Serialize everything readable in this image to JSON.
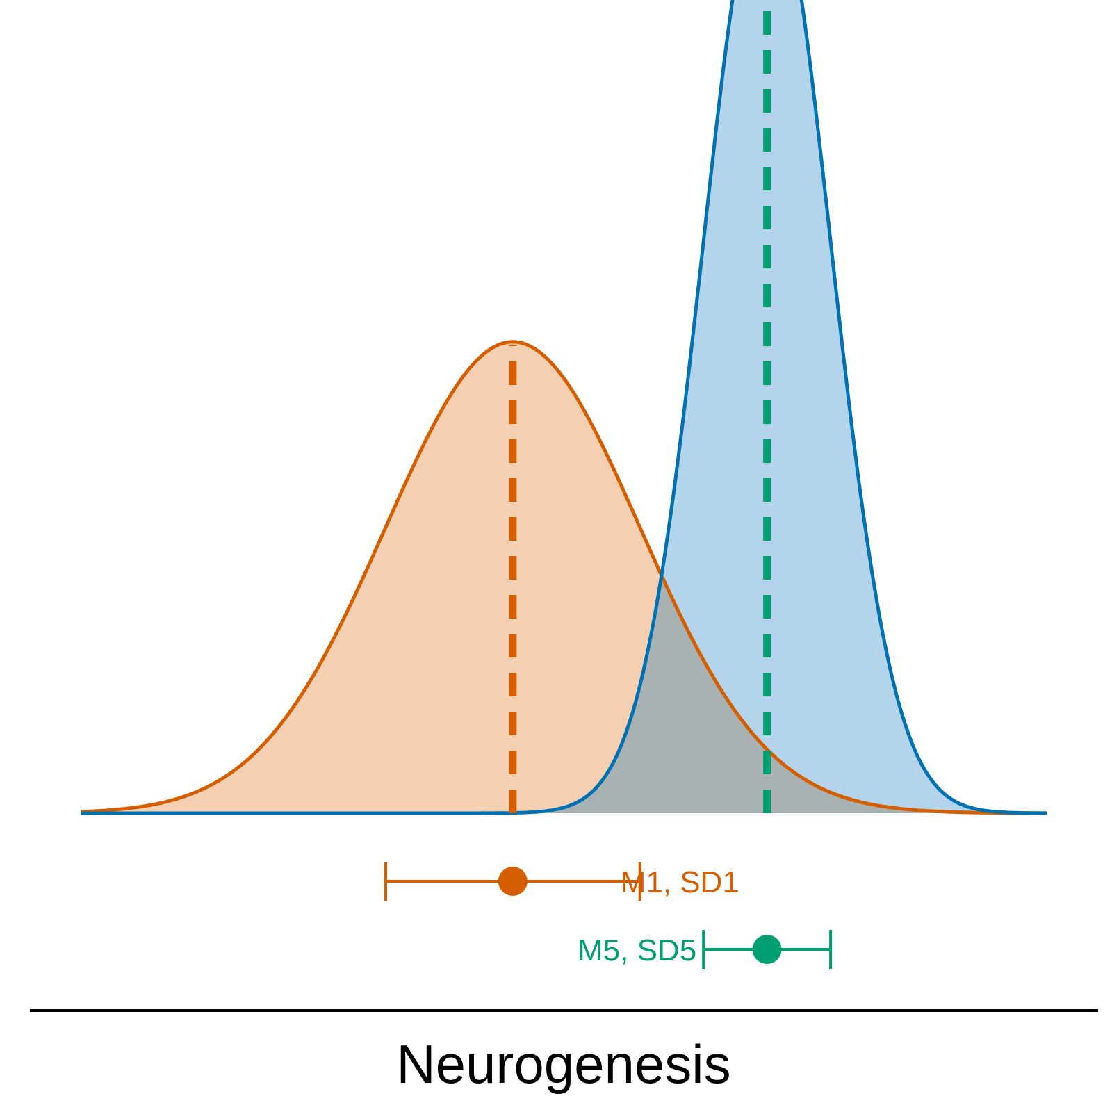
{
  "chart_data": {
    "type": "area",
    "title": "",
    "xlabel": "Neurogenesis",
    "ylabel": "",
    "xlim": [
      -3.4,
      4.2
    ],
    "ylim": [
      0,
      0.6
    ],
    "grid": false,
    "series": [
      {
        "label": "M1, SD1",
        "mean": 0,
        "sd": 1,
        "fill": "#f4cfb2",
        "stroke": "#d55e00",
        "mean_line_color": "#d55e00",
        "errorbar_color": "#d55e00"
      },
      {
        "label": "M5, SD5",
        "mean": 2,
        "sd": 0.5,
        "fill": "#b3d4ea",
        "stroke": "#0072b2",
        "mean_line_color": "#009e73",
        "errorbar_color": "#009e73"
      }
    ],
    "overlap_fill": "#a9b2b3"
  }
}
